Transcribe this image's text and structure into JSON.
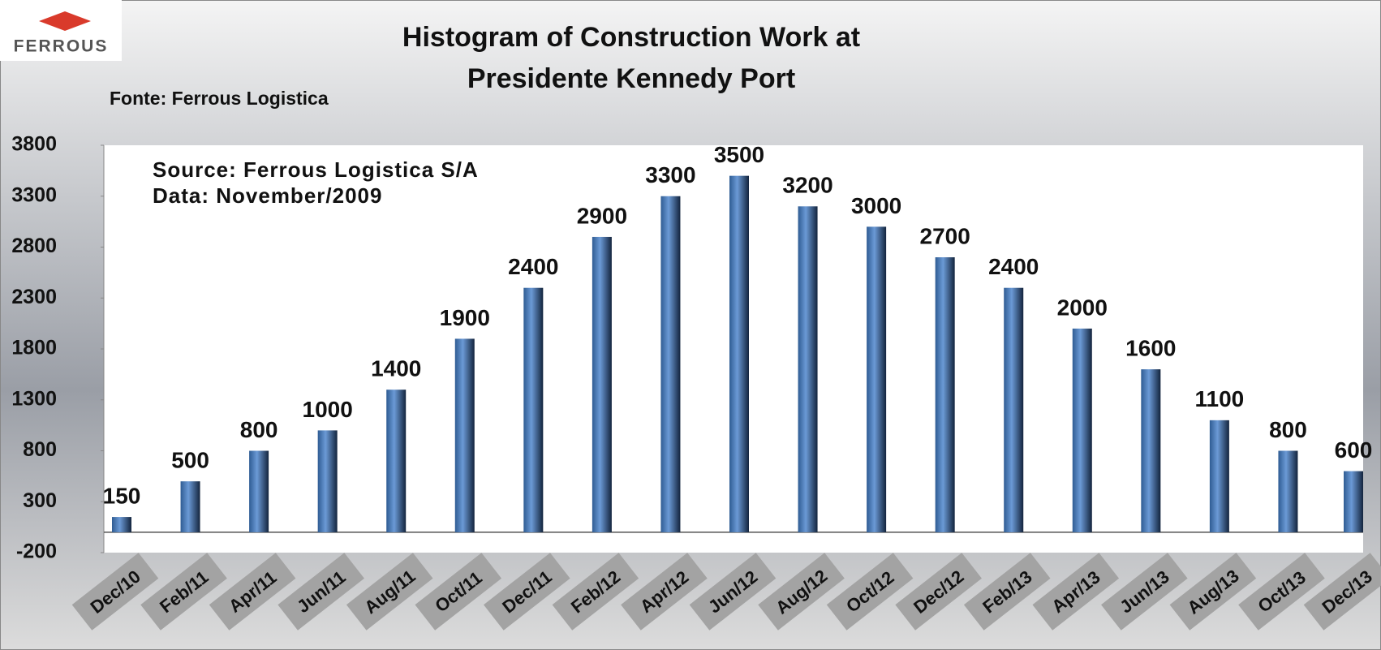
{
  "logo": {
    "text": "FERROUS"
  },
  "chart_data": {
    "type": "bar",
    "title": [
      "Histogram of Construction  Work at",
      "Presidente Kennedy Port"
    ],
    "subtitle": "Fonte: Ferrous Logistica",
    "annotations": [
      "Source: Ferrous Logistica S/A",
      "Data: November/2009"
    ],
    "categories": [
      "Dec/10",
      "Feb/11",
      "Apr/11",
      "Jun/11",
      "Aug/11",
      "Oct/11",
      "Dec/11",
      "Feb/12",
      "Apr/12",
      "Jun/12",
      "Aug/12",
      "Oct/12",
      "Dec/12",
      "Feb/13",
      "Apr/13",
      "Jun/13",
      "Aug/13",
      "Oct/13",
      "Dec/13"
    ],
    "values": [
      150,
      500,
      800,
      1000,
      1400,
      1900,
      2400,
      2900,
      3300,
      3500,
      3200,
      3000,
      2700,
      2400,
      2000,
      1600,
      1100,
      800,
      600
    ],
    "color": "#4f81bd",
    "ylim": [
      -200,
      3800
    ],
    "yticks": [
      -200,
      300,
      800,
      1300,
      1800,
      2300,
      2800,
      3300,
      3800
    ],
    "grid": false
  }
}
